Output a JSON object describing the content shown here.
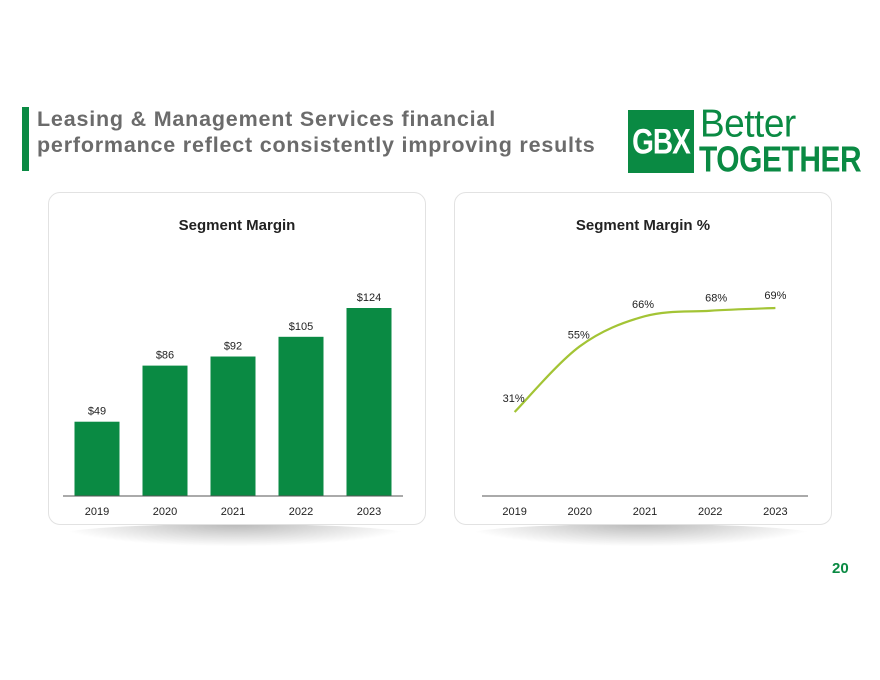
{
  "slide": {
    "title_line1": "Leasing & Management Services financial",
    "title_line2": "performance reflect consistently improving results",
    "page_number": "20"
  },
  "logo": {
    "box_text": "GBX",
    "line1": "Better",
    "line2": "TOGETHER",
    "brand_color": "#0a8a43"
  },
  "chart_data": [
    {
      "type": "bar",
      "title": "Segment Margin",
      "categories": [
        "2019",
        "2020",
        "2021",
        "2022",
        "2023"
      ],
      "values": [
        49,
        86,
        92,
        105,
        124
      ],
      "labels": [
        "$49",
        "$86",
        "$92",
        "$105",
        "$124"
      ],
      "xlabel": "",
      "ylabel": "",
      "ylim": [
        0,
        124
      ],
      "grid": false,
      "color": "#0a8a43"
    },
    {
      "type": "line",
      "title": "Segment Margin %",
      "categories": [
        "2019",
        "2020",
        "2021",
        "2022",
        "2023"
      ],
      "values": [
        31,
        55,
        66,
        68,
        69
      ],
      "labels": [
        "31%",
        "55%",
        "66%",
        "68%",
        "69%"
      ],
      "xlabel": "",
      "ylabel": "",
      "ylim": [
        0,
        69
      ],
      "grid": false,
      "color": "#a3c435"
    }
  ]
}
